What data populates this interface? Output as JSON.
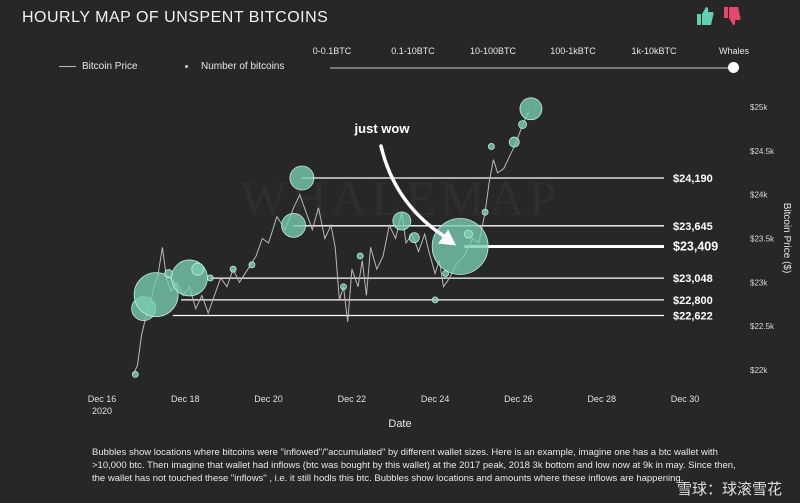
{
  "header": {
    "title": "HOURLY MAP OF UNSPENT BITCOINS",
    "thumb_up_color": "#5fd0b0",
    "thumb_down_color": "#e8476a"
  },
  "legend": {
    "price_label": "Bitcoin Price",
    "count_label": "Number of bitcoins"
  },
  "slider": {
    "options": [
      "0-0.1BTC",
      "0.1-10BTC",
      "10-100BTC",
      "100-1kBTC",
      "1k-10kBTC",
      "Whales"
    ],
    "selected": "Whales"
  },
  "caption": "Bubbles show locations where bitcoins were \"inflowed\"/\"accumulated\" by different wallet sizes. Here is an example, imagine one has a btc wallet with >10,000 btc. Then imagine that wallet had inflows (btc was bought by this wallet) at the 2017 peak, 2018 3k bottom and low now at 9k in may. Since then, the wallet has not touched these \"inflows\" , i.e. it still hodls this btc. Bubbles show locations and amounts where these inflows are happening.",
  "watermark_text": "WHALEMAP",
  "overlay_text": "雪球：球滚雪花",
  "chart_data": {
    "type": "scatter",
    "title": "HOURLY MAP OF UNSPENT BITCOINS",
    "xlabel": "Date",
    "ylabel": "Bitcoin Price ($)",
    "xlim": [
      16,
      31
    ],
    "ylim": [
      21800,
      25400
    ],
    "x_ticks": [
      {
        "value": 16,
        "label": "Dec 16",
        "sub": "2020"
      },
      {
        "value": 18,
        "label": "Dec 18",
        "sub": ""
      },
      {
        "value": 20,
        "label": "Dec 20",
        "sub": ""
      },
      {
        "value": 22,
        "label": "Dec 22",
        "sub": ""
      },
      {
        "value": 24,
        "label": "Dec 24",
        "sub": ""
      },
      {
        "value": 26,
        "label": "Dec 26",
        "sub": ""
      },
      {
        "value": 28,
        "label": "Dec 28",
        "sub": ""
      },
      {
        "value": 30,
        "label": "Dec 30",
        "sub": ""
      }
    ],
    "y_ticks": [
      {
        "value": 22000,
        "label": "$22k"
      },
      {
        "value": 22500,
        "label": "$22.5k"
      },
      {
        "value": 23000,
        "label": "$23k"
      },
      {
        "value": 23500,
        "label": "$23.5k"
      },
      {
        "value": 24000,
        "label": "$24k"
      },
      {
        "value": 24500,
        "label": "$24.5k"
      },
      {
        "value": 25000,
        "label": "$25k"
      }
    ],
    "levels": [
      {
        "value": 24190,
        "label": "$24,190",
        "start_x": 20.8,
        "emphasis": false
      },
      {
        "value": 23645,
        "label": "$23,645",
        "start_x": 20.6,
        "emphasis": false
      },
      {
        "value": 23409,
        "label": "$23,409",
        "start_x": 24.7,
        "emphasis": true
      },
      {
        "value": 23048,
        "label": "$23,048",
        "start_x": 18.6,
        "emphasis": false
      },
      {
        "value": 22800,
        "label": "$22,800",
        "start_x": 17.9,
        "emphasis": false
      },
      {
        "value": 22622,
        "label": "$22,622",
        "start_x": 17.7,
        "emphasis": false
      }
    ],
    "annotation": {
      "text": "just wow",
      "target_x": 24.6,
      "target_y": 23420
    },
    "price_series": [
      {
        "x": 16.75,
        "y": 21950
      },
      {
        "x": 16.85,
        "y": 22050
      },
      {
        "x": 16.95,
        "y": 22400
      },
      {
        "x": 17.05,
        "y": 22600
      },
      {
        "x": 17.15,
        "y": 22750
      },
      {
        "x": 17.25,
        "y": 22950
      },
      {
        "x": 17.35,
        "y": 23100
      },
      {
        "x": 17.45,
        "y": 23400
      },
      {
        "x": 17.55,
        "y": 23050
      },
      {
        "x": 17.65,
        "y": 22900
      },
      {
        "x": 17.8,
        "y": 23000
      },
      {
        "x": 17.95,
        "y": 22850
      },
      {
        "x": 18.1,
        "y": 22950
      },
      {
        "x": 18.25,
        "y": 22700
      },
      {
        "x": 18.4,
        "y": 22850
      },
      {
        "x": 18.55,
        "y": 22650
      },
      {
        "x": 18.7,
        "y": 22850
      },
      {
        "x": 18.85,
        "y": 23050
      },
      {
        "x": 19.0,
        "y": 22950
      },
      {
        "x": 19.15,
        "y": 23150
      },
      {
        "x": 19.3,
        "y": 23000
      },
      {
        "x": 19.5,
        "y": 23150
      },
      {
        "x": 19.7,
        "y": 23300
      },
      {
        "x": 19.85,
        "y": 23500
      },
      {
        "x": 20.0,
        "y": 23450
      },
      {
        "x": 20.2,
        "y": 23750
      },
      {
        "x": 20.4,
        "y": 23600
      },
      {
        "x": 20.6,
        "y": 23850
      },
      {
        "x": 20.75,
        "y": 24000
      },
      {
        "x": 20.9,
        "y": 23800
      },
      {
        "x": 21.05,
        "y": 23600
      },
      {
        "x": 21.2,
        "y": 23850
      },
      {
        "x": 21.35,
        "y": 23500
      },
      {
        "x": 21.5,
        "y": 23650
      },
      {
        "x": 21.6,
        "y": 23400
      },
      {
        "x": 21.7,
        "y": 22800
      },
      {
        "x": 21.8,
        "y": 22950
      },
      {
        "x": 21.9,
        "y": 22550
      },
      {
        "x": 22.0,
        "y": 23150
      },
      {
        "x": 22.15,
        "y": 22950
      },
      {
        "x": 22.25,
        "y": 23250
      },
      {
        "x": 22.35,
        "y": 22850
      },
      {
        "x": 22.45,
        "y": 23400
      },
      {
        "x": 22.6,
        "y": 23150
      },
      {
        "x": 22.75,
        "y": 23300
      },
      {
        "x": 22.9,
        "y": 23650
      },
      {
        "x": 23.05,
        "y": 23500
      },
      {
        "x": 23.2,
        "y": 23800
      },
      {
        "x": 23.3,
        "y": 23450
      },
      {
        "x": 23.45,
        "y": 23550
      },
      {
        "x": 23.6,
        "y": 23350
      },
      {
        "x": 23.75,
        "y": 23550
      },
      {
        "x": 23.85,
        "y": 23350
      },
      {
        "x": 24.0,
        "y": 23100
      },
      {
        "x": 24.1,
        "y": 23250
      },
      {
        "x": 24.2,
        "y": 22950
      },
      {
        "x": 24.35,
        "y": 23050
      },
      {
        "x": 24.5,
        "y": 23200
      },
      {
        "x": 24.7,
        "y": 23300
      },
      {
        "x": 24.9,
        "y": 23500
      },
      {
        "x": 25.05,
        "y": 23450
      },
      {
        "x": 25.2,
        "y": 23800
      },
      {
        "x": 25.3,
        "y": 24150
      },
      {
        "x": 25.4,
        "y": 24400
      },
      {
        "x": 25.5,
        "y": 24250
      },
      {
        "x": 25.65,
        "y": 24300
      },
      {
        "x": 25.8,
        "y": 24450
      },
      {
        "x": 25.95,
        "y": 24600
      },
      {
        "x": 26.1,
        "y": 24800
      },
      {
        "x": 26.25,
        "y": 24950
      }
    ],
    "bubbles": [
      {
        "x": 16.8,
        "y": 21950,
        "size": 3
      },
      {
        "x": 17.0,
        "y": 22700,
        "size": 12
      },
      {
        "x": 17.3,
        "y": 22860,
        "size": 22
      },
      {
        "x": 17.6,
        "y": 23100,
        "size": 4
      },
      {
        "x": 18.1,
        "y": 23050,
        "size": 18
      },
      {
        "x": 18.3,
        "y": 23150,
        "size": 6
      },
      {
        "x": 18.6,
        "y": 23050,
        "size": 3
      },
      {
        "x": 19.15,
        "y": 23150,
        "size": 3
      },
      {
        "x": 19.6,
        "y": 23200,
        "size": 3
      },
      {
        "x": 20.6,
        "y": 23650,
        "size": 12
      },
      {
        "x": 20.8,
        "y": 24190,
        "size": 12
      },
      {
        "x": 21.8,
        "y": 22950,
        "size": 3
      },
      {
        "x": 22.2,
        "y": 23300,
        "size": 3
      },
      {
        "x": 23.2,
        "y": 23700,
        "size": 9
      },
      {
        "x": 23.5,
        "y": 23510,
        "size": 5
      },
      {
        "x": 24.0,
        "y": 22800,
        "size": 3
      },
      {
        "x": 24.25,
        "y": 23100,
        "size": 3
      },
      {
        "x": 24.6,
        "y": 23409,
        "size": 28
      },
      {
        "x": 24.8,
        "y": 23550,
        "size": 4
      },
      {
        "x": 25.2,
        "y": 23800,
        "size": 3
      },
      {
        "x": 25.35,
        "y": 24550,
        "size": 3
      },
      {
        "x": 25.9,
        "y": 24600,
        "size": 5
      },
      {
        "x": 26.1,
        "y": 24800,
        "size": 4
      },
      {
        "x": 26.3,
        "y": 24980,
        "size": 11
      }
    ]
  }
}
